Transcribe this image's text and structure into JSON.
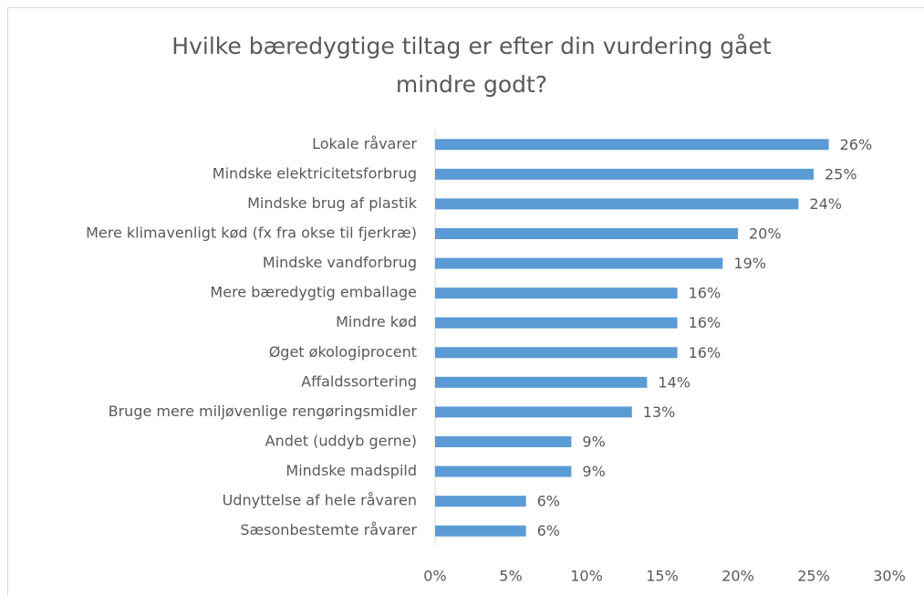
{
  "chart_data": {
    "type": "barh",
    "title": "Hvilke bæredygtige tiltag er efter din vurdering gået mindre godt?",
    "categories": [
      "Lokale råvarer",
      "Mindske elektricitetsforbrug",
      "Mindske brug af plastik",
      "Mere klimavenligt kød (fx fra okse til fjerkræ)",
      "Mindske vandforbrug",
      "Mere bæredygtig emballage",
      "Mindre kød",
      "Øget økologiprocent",
      "Affaldssortering",
      "Bruge mere miljøvenlige rengøringsmidler",
      "Andet (uddyb gerne)",
      "Mindske madspild",
      "Udnyttelse af hele råvaren",
      "Sæsonbestemte råvarer"
    ],
    "values": [
      26,
      25,
      24,
      20,
      19,
      16,
      16,
      16,
      14,
      13,
      9,
      9,
      6,
      6
    ],
    "value_labels": [
      "26%",
      "25%",
      "24%",
      "20%",
      "19%",
      "16%",
      "16%",
      "16%",
      "14%",
      "13%",
      "9%",
      "9%",
      "6%",
      "6%"
    ],
    "color": "#5b9bd5",
    "xlim": [
      0,
      30
    ],
    "xticks": [
      {
        "value": 0,
        "label": "0%"
      },
      {
        "value": 5,
        "label": "5%"
      },
      {
        "value": 10,
        "label": "10%"
      },
      {
        "value": 15,
        "label": "15%"
      },
      {
        "value": 20,
        "label": "20%"
      },
      {
        "value": 25,
        "label": "25%"
      },
      {
        "value": 30,
        "label": "30%"
      }
    ],
    "grid": false
  }
}
